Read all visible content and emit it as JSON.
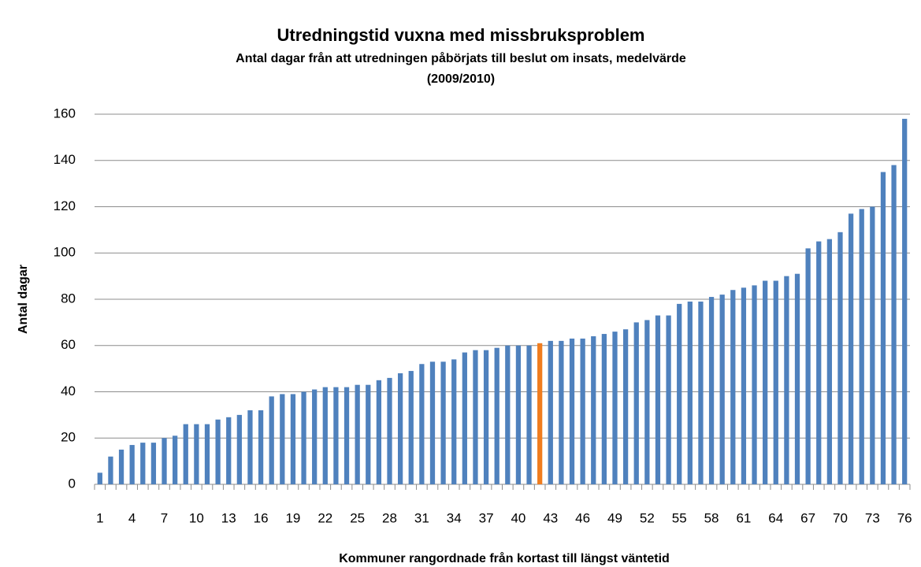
{
  "chart_data": {
    "type": "bar",
    "title": "Utredningstid vuxna med missbruksproblem",
    "subtitle": [
      "Antal dagar från att utredningen påbörjats till beslut om insats, medelvärde",
      "(2009/2010)"
    ],
    "y_label": "Antal dagar",
    "x_label": "Kommuner rangordnade från kortast till längst väntetid",
    "categories": [
      "1",
      null,
      null,
      "4",
      null,
      null,
      "7",
      null,
      null,
      "10",
      null,
      null,
      "13",
      null,
      null,
      "16",
      null,
      null,
      "19",
      null,
      null,
      "22",
      null,
      null,
      "25",
      null,
      null,
      "28",
      null,
      null,
      "31",
      null,
      null,
      "34",
      null,
      null,
      "37",
      null,
      null,
      "40",
      null,
      null,
      "43",
      null,
      null,
      "46",
      null,
      null,
      "49",
      null,
      null,
      "52",
      null,
      null,
      "55",
      null,
      null,
      "58",
      null,
      null,
      "61",
      null,
      null,
      "64",
      null,
      null,
      "67",
      null,
      null,
      "70",
      null,
      null,
      "73",
      null,
      null,
      "76"
    ],
    "values": [
      5,
      12,
      15,
      17,
      18,
      18,
      20,
      21,
      26,
      26,
      26,
      28,
      29,
      30,
      32,
      32,
      38,
      39,
      39,
      40,
      41,
      42,
      42,
      42,
      43,
      43,
      45,
      46,
      48,
      49,
      52,
      53,
      53,
      54,
      57,
      58,
      58,
      59,
      60,
      60,
      60,
      61,
      62,
      62,
      63,
      63,
      64,
      65,
      66,
      67,
      70,
      71,
      73,
      73,
      78,
      79,
      79,
      81,
      82,
      84,
      85,
      86,
      88,
      88,
      90,
      91,
      102,
      105,
      106,
      109,
      117,
      119,
      120,
      135,
      138,
      158
    ],
    "colors": [
      "#4f81bd",
      "#4f81bd",
      "#4f81bd",
      "#4f81bd",
      "#4f81bd",
      "#4f81bd",
      "#4f81bd",
      "#4f81bd",
      "#4f81bd",
      "#4f81bd",
      "#4f81bd",
      "#4f81bd",
      "#4f81bd",
      "#4f81bd",
      "#4f81bd",
      "#4f81bd",
      "#4f81bd",
      "#4f81bd",
      "#4f81bd",
      "#4f81bd",
      "#4f81bd",
      "#4f81bd",
      "#4f81bd",
      "#4f81bd",
      "#4f81bd",
      "#4f81bd",
      "#4f81bd",
      "#4f81bd",
      "#4f81bd",
      "#4f81bd",
      "#4f81bd",
      "#4f81bd",
      "#4f81bd",
      "#4f81bd",
      "#4f81bd",
      "#4f81bd",
      "#4f81bd",
      "#4f81bd",
      "#4f81bd",
      "#4f81bd",
      "#4f81bd",
      "#f07d1f",
      "#4f81bd",
      "#4f81bd",
      "#4f81bd",
      "#4f81bd",
      "#4f81bd",
      "#4f81bd",
      "#4f81bd",
      "#4f81bd",
      "#4f81bd",
      "#4f81bd",
      "#4f81bd",
      "#4f81bd",
      "#4f81bd",
      "#4f81bd",
      "#4f81bd",
      "#4f81bd",
      "#4f81bd",
      "#4f81bd",
      "#4f81bd",
      "#4f81bd",
      "#4f81bd",
      "#4f81bd",
      "#4f81bd",
      "#4f81bd",
      "#4f81bd",
      "#4f81bd",
      "#4f81bd",
      "#4f81bd",
      "#4f81bd",
      "#4f81bd",
      "#4f81bd",
      "#4f81bd",
      "#4f81bd",
      "#4f81bd"
    ],
    "ylim": [
      0,
      160
    ],
    "yticks": [
      0,
      20,
      40,
      60,
      80,
      100,
      120,
      140,
      160
    ],
    "grid": true
  }
}
